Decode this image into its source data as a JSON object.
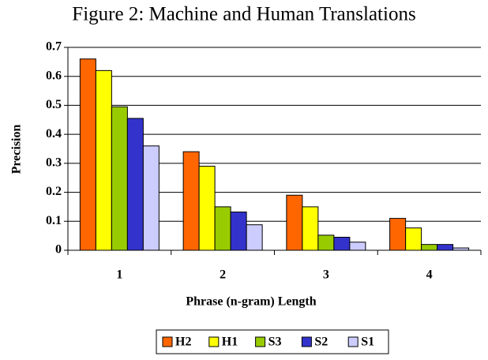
{
  "chart_data": {
    "type": "bar",
    "title": "Figure 2: Machine and Human Translations",
    "x_label": "Phrase (n-gram) Length",
    "y_label": "Precision",
    "categories": [
      "1",
      "2",
      "3",
      "4"
    ],
    "series": [
      {
        "name": "H2",
        "color": "#ff6600",
        "values": [
          0.66,
          0.34,
          0.19,
          0.11
        ]
      },
      {
        "name": "H1",
        "color": "#ffff00",
        "values": [
          0.62,
          0.29,
          0.15,
          0.077
        ]
      },
      {
        "name": "S3",
        "color": "#99cc00",
        "values": [
          0.495,
          0.15,
          0.052,
          0.02
        ]
      },
      {
        "name": "S2",
        "color": "#3333cc",
        "values": [
          0.455,
          0.132,
          0.045,
          0.02
        ]
      },
      {
        "name": "S1",
        "color": "#ccccff",
        "values": [
          0.36,
          0.088,
          0.028,
          0.008
        ]
      }
    ],
    "ylim": [
      0,
      0.7
    ],
    "yticks": [
      0,
      0.1,
      0.2,
      0.3,
      0.4,
      0.5,
      0.6,
      0.7
    ],
    "grid": true,
    "legend": "bottom"
  }
}
